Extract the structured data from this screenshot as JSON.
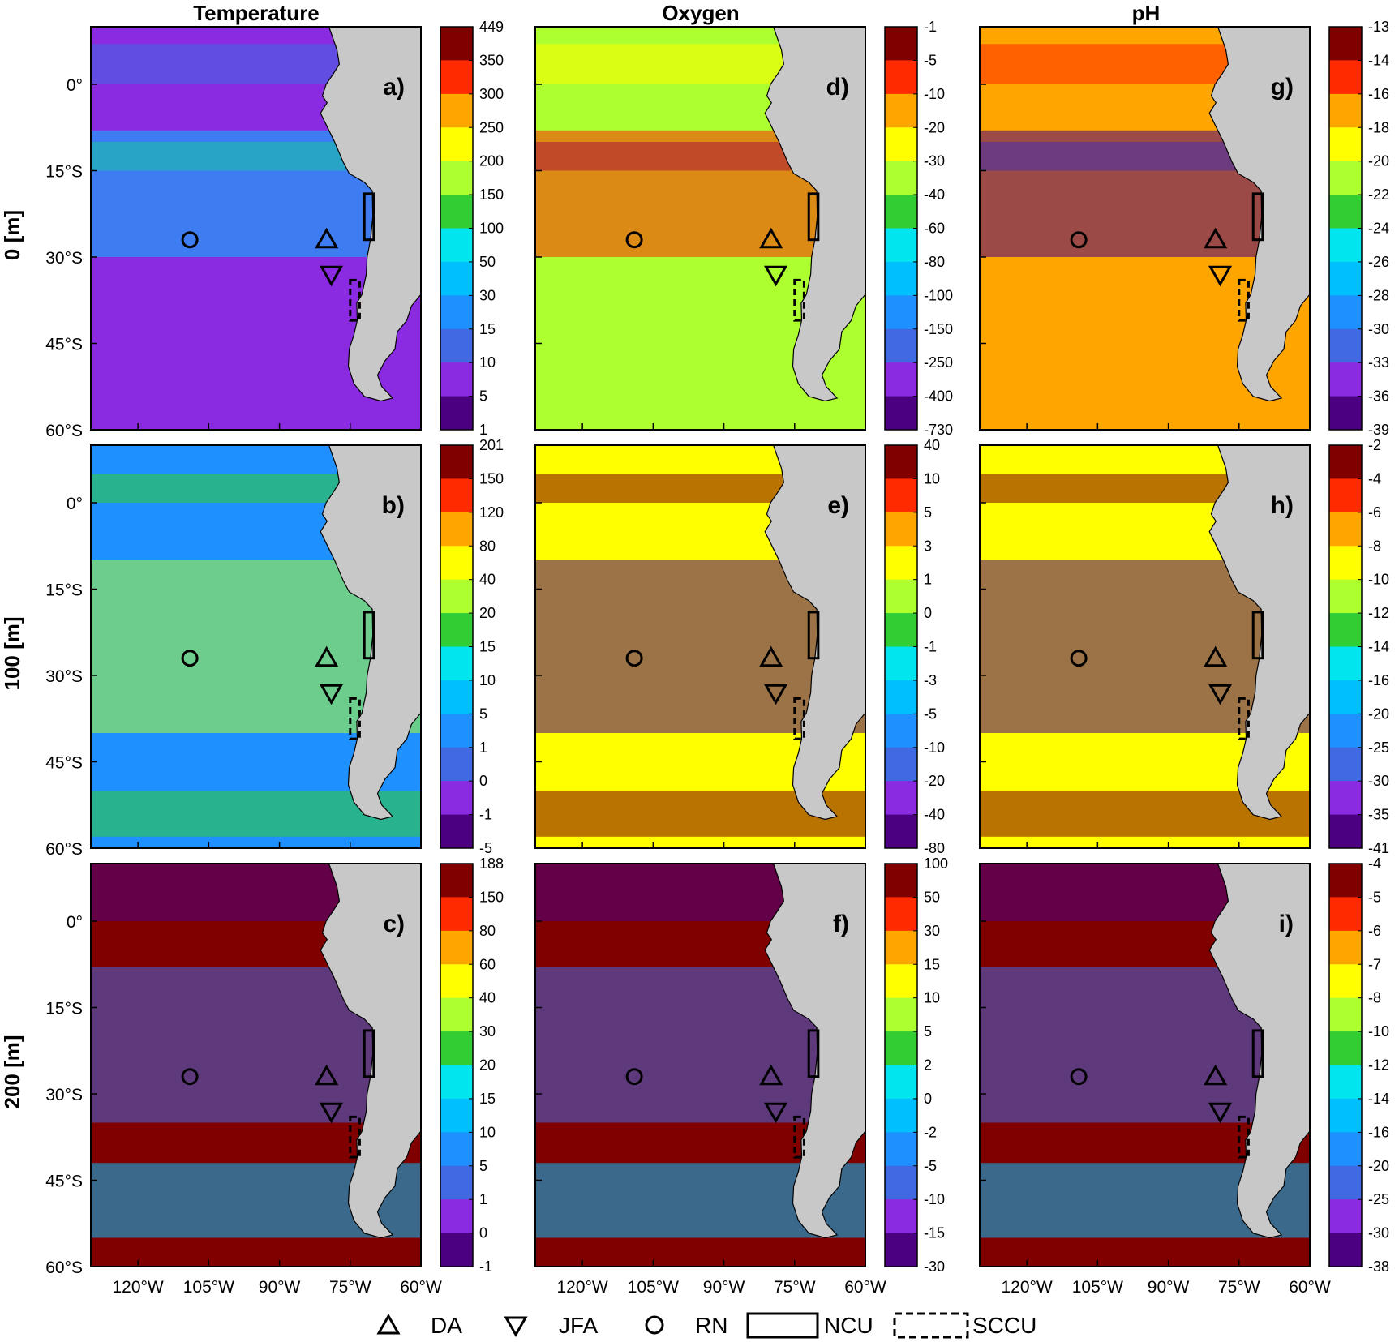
{
  "chart_data": {
    "type": "heatmap",
    "columns": [
      "Temperature",
      "Oxygen",
      "pH"
    ],
    "rows": [
      "0 [m]",
      "100 [m]",
      "200 [m]"
    ],
    "x_ticks": [
      "120°W",
      "105°W",
      "90°W",
      "75°W",
      "60°W"
    ],
    "y_ticks": [
      "0°",
      "15°S",
      "30°S",
      "45°S",
      "60°S"
    ],
    "xlim": [
      -130,
      -60
    ],
    "ylim": [
      -60,
      10
    ],
    "colormap": [
      "#4b0082",
      "#8a2be2",
      "#4169e1",
      "#1e90ff",
      "#00bfff",
      "#00e5ee",
      "#32cd32",
      "#adff2f",
      "#ffff00",
      "#ffa500",
      "#ff2a00",
      "#800000"
    ],
    "panels": [
      {
        "label": "a)",
        "column": "Temperature",
        "row": "0 [m]",
        "colorbar": [
          "449",
          "350",
          "300",
          "250",
          "200",
          "150",
          "100",
          "50",
          "30",
          "15",
          "10",
          "5",
          "1"
        ]
      },
      {
        "label": "b)",
        "column": "Temperature",
        "row": "100 [m]",
        "colorbar": [
          "201",
          "150",
          "120",
          "80",
          "40",
          "20",
          "15",
          "10",
          "5",
          "1",
          "0",
          "-1",
          "-5"
        ]
      },
      {
        "label": "c)",
        "column": "Temperature",
        "row": "200 [m]",
        "colorbar": [
          "188",
          "150",
          "80",
          "60",
          "40",
          "30",
          "20",
          "15",
          "10",
          "5",
          "1",
          "0",
          "-1"
        ]
      },
      {
        "label": "d)",
        "column": "Oxygen",
        "row": "0 [m]",
        "colorbar": [
          "-1",
          "-5",
          "-10",
          "-20",
          "-30",
          "-40",
          "-60",
          "-80",
          "-100",
          "-150",
          "-250",
          "-400",
          "-730"
        ]
      },
      {
        "label": "e)",
        "column": "Oxygen",
        "row": "100 [m]",
        "colorbar": [
          "40",
          "10",
          "5",
          "3",
          "1",
          "0",
          "-1",
          "-3",
          "-5",
          "-10",
          "-20",
          "-40",
          "-80"
        ]
      },
      {
        "label": "f)",
        "column": "Oxygen",
        "row": "200 [m]",
        "colorbar": [
          "100",
          "50",
          "30",
          "15",
          "10",
          "5",
          "2",
          "0",
          "-2",
          "-5",
          "-10",
          "-15",
          "-30"
        ]
      },
      {
        "label": "g)",
        "column": "pH",
        "row": "0 [m]",
        "colorbar": [
          "-13",
          "-14",
          "-16",
          "-18",
          "-20",
          "-22",
          "-24",
          "-26",
          "-28",
          "-30",
          "-33",
          "-36",
          "-39"
        ]
      },
      {
        "label": "h)",
        "column": "pH",
        "row": "100 [m]",
        "colorbar": [
          "-2",
          "-4",
          "-6",
          "-8",
          "-10",
          "-12",
          "-14",
          "-16",
          "-20",
          "-25",
          "-30",
          "-35",
          "-41"
        ]
      },
      {
        "label": "i)",
        "column": "pH",
        "row": "200 [m]",
        "colorbar": [
          "-4",
          "-5",
          "-6",
          "-7",
          "-8",
          "-10",
          "-12",
          "-14",
          "-16",
          "-20",
          "-25",
          "-30",
          "-38"
        ]
      }
    ],
    "markers": [
      {
        "name": "DA",
        "symbol": "triangle-up",
        "lon": -80,
        "lat": -27
      },
      {
        "name": "JFA",
        "symbol": "triangle-down",
        "lon": -79,
        "lat": -33
      },
      {
        "name": "RN",
        "symbol": "circle",
        "lon": -109,
        "lat": -27
      }
    ],
    "regions": [
      {
        "name": "NCU",
        "style": "solid",
        "lon": [
          -72,
          -70
        ],
        "lat": [
          -27,
          -19
        ]
      },
      {
        "name": "SCCU",
        "style": "dashed",
        "lon": [
          -75,
          -73
        ],
        "lat": [
          -41,
          -34
        ]
      }
    ],
    "legend": [
      "DA",
      "JFA",
      "RN",
      "NCU",
      "SCCU"
    ]
  }
}
